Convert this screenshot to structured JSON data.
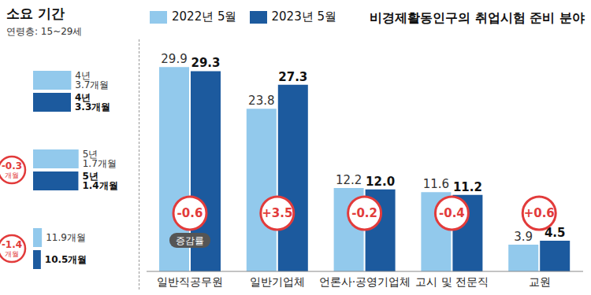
{
  "chart_data": [
    {
      "type": "bar",
      "title": "소요 기간",
      "subtitle": "연령층: 15~29세",
      "orientation": "horizontal",
      "categories": [
        null,
        null,
        null
      ],
      "series": [
        {
          "name": "2022년 5월",
          "color": "#92c9ec",
          "values": [
            51.7,
            61.7,
            11.9
          ],
          "value_labels": [
            "4년 3.7개월",
            "5년 1.7개월",
            "11.9개월"
          ]
        },
        {
          "name": "2023년 5월",
          "color": "#1c5a9e",
          "values": [
            51.3,
            61.4,
            10.5
          ],
          "value_labels": [
            "4년 3.3개월",
            "5년 1.4개월",
            "10.5개월"
          ]
        }
      ],
      "changes": [
        null,
        -0.3,
        -1.4
      ],
      "change_labels": [
        null,
        "-0.3",
        "-1.4"
      ],
      "change_unit": "개월",
      "xlim": [
        0,
        62
      ],
      "tick_labels": false,
      "data_labels": true,
      "legend": "top"
    },
    {
      "type": "bar",
      "title": "비경제활동인구의 취업시험 준비 분야",
      "categories": [
        "일반직공무원",
        "일반기업체",
        "언론사·공영기업체",
        "고시 및 전문직",
        "교원"
      ],
      "series": [
        {
          "name": "2022년 5월",
          "color": "#92c9ec",
          "values": [
            29.9,
            23.8,
            12.2,
            11.6,
            3.9
          ],
          "value_labels": [
            "29.9",
            "23.8",
            "12.2",
            "11.6",
            "3.9"
          ]
        },
        {
          "name": "2023년 5월",
          "color": "#1c5a9e",
          "values": [
            29.3,
            27.3,
            12.0,
            11.2,
            4.5
          ],
          "value_labels": [
            "29.3",
            "27.3",
            "12.0",
            "11.2",
            "4.5"
          ]
        }
      ],
      "changes": [
        -0.6,
        3.5,
        -0.2,
        -0.4,
        0.6
      ],
      "change_labels": [
        "-0.6",
        "+3.5",
        "-0.2",
        "-0.4",
        "+0.6"
      ],
      "change_note": "증감률",
      "ylim": [
        0,
        32
      ],
      "tick_labels": "x",
      "data_labels": true,
      "legend": "top"
    }
  ]
}
